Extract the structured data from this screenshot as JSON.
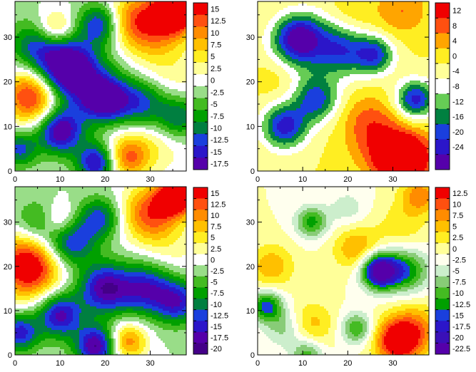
{
  "chart_data": [
    {
      "type": "heatmap",
      "title": "",
      "xlabel": "",
      "ylabel": "",
      "xlim": [
        0,
        38
      ],
      "ylim": [
        0,
        38
      ],
      "x_ticks": [
        "0",
        "10",
        "20",
        "30"
      ],
      "y_ticks": [
        "0",
        "10",
        "20",
        "30"
      ],
      "x_tick_values": [
        0,
        10,
        20,
        30
      ],
      "y_tick_values": [
        0,
        10,
        20,
        30
      ],
      "grid": false,
      "levels": [
        "15",
        "12.5",
        "10",
        "7.5",
        "5",
        "2.5",
        "0",
        "-2.5",
        "-5",
        "-7.5",
        "-10",
        "-12.5",
        "-15",
        "-17.5"
      ],
      "colors": [
        "#f00000",
        "#ff5010",
        "#ff8c00",
        "#ffc000",
        "#ffee22",
        "#ffff99",
        "#ffffff",
        "#99dd88",
        "#44bb22",
        "#00a000",
        "#007f40",
        "#1a3fdd",
        "#2b16c9",
        "#5500aa"
      ],
      "bumps": [
        {
          "x": 36,
          "y": 36,
          "a": 20,
          "s": 3.5
        },
        {
          "x": 30,
          "y": 33,
          "a": 13,
          "s": 5
        },
        {
          "x": 24,
          "y": 34,
          "a": 6,
          "s": 4
        },
        {
          "x": 4,
          "y": 17,
          "a": 18,
          "s": 4.5
        },
        {
          "x": 9,
          "y": 32,
          "a": 9,
          "s": 2.8
        },
        {
          "x": 25,
          "y": 3,
          "a": 11,
          "s": 3.2
        },
        {
          "x": 30,
          "y": 8,
          "a": 6,
          "s": 6
        },
        {
          "x": 34,
          "y": 22,
          "a": 4,
          "s": 6
        },
        {
          "x": 11,
          "y": 23,
          "a": -19,
          "s": 4.5
        },
        {
          "x": 4,
          "y": 28,
          "a": -9,
          "s": 4
        },
        {
          "x": 10,
          "y": 9,
          "a": -18,
          "s": 3.5
        },
        {
          "x": 20,
          "y": 16,
          "a": -17,
          "s": 3.5
        },
        {
          "x": 28,
          "y": 15,
          "a": -14,
          "s": 4
        },
        {
          "x": 36,
          "y": 12,
          "a": -12,
          "s": 3.5
        },
        {
          "x": 19,
          "y": 33,
          "a": -14,
          "s": 3.2
        },
        {
          "x": 18,
          "y": 2,
          "a": -16,
          "s": 3
        },
        {
          "x": 1,
          "y": 5,
          "a": -11,
          "s": 2.8
        },
        {
          "x": 15,
          "y": 20,
          "a": -8,
          "s": 6
        }
      ]
    },
    {
      "type": "heatmap",
      "title": "",
      "xlabel": "",
      "ylabel": "",
      "xlim": [
        0,
        38
      ],
      "ylim": [
        0,
        38
      ],
      "x_ticks": [
        "0",
        "10",
        "20",
        "30"
      ],
      "y_ticks": [
        "0",
        "10",
        "20",
        "30"
      ],
      "x_tick_values": [
        0,
        10,
        20,
        30
      ],
      "y_tick_values": [
        0,
        10,
        20,
        30
      ],
      "grid": false,
      "levels": [
        "12",
        "8",
        "4",
        "0",
        "-4",
        "-8",
        "-12",
        "-16",
        "-20",
        "-24"
      ],
      "colors": [
        "#f00000",
        "#ff5010",
        "#ffa500",
        "#ffee22",
        "#ffff99",
        "#ffffff",
        "#66cc55",
        "#008040",
        "#1a3fdd",
        "#2b16c9",
        "#5500aa"
      ],
      "bumps": [
        {
          "x": 32,
          "y": 2,
          "a": 30,
          "s": 3.2
        },
        {
          "x": 28,
          "y": 6,
          "a": 12,
          "s": 5
        },
        {
          "x": 24,
          "y": 12,
          "a": 6,
          "s": 4
        },
        {
          "x": 36,
          "y": 4,
          "a": 6,
          "s": 4
        },
        {
          "x": 32,
          "y": 36,
          "a": 8,
          "s": 4
        },
        {
          "x": 20,
          "y": 34,
          "a": 6,
          "s": 4
        },
        {
          "x": 5,
          "y": 22,
          "a": 6,
          "s": 4
        },
        {
          "x": 6,
          "y": 10,
          "a": -22,
          "s": 3.5
        },
        {
          "x": 13,
          "y": 16,
          "a": -18,
          "s": 3.5
        },
        {
          "x": 9,
          "y": 30,
          "a": -20,
          "s": 3.5
        },
        {
          "x": 19,
          "y": 27,
          "a": -14,
          "s": 4
        },
        {
          "x": 26,
          "y": 26,
          "a": -18,
          "s": 3
        },
        {
          "x": 35,
          "y": 16,
          "a": -22,
          "s": 3
        },
        {
          "x": 8,
          "y": 26,
          "a": -10,
          "s": 5
        },
        {
          "x": 16,
          "y": 30,
          "a": -8,
          "s": 5
        }
      ]
    },
    {
      "type": "heatmap",
      "title": "",
      "xlabel": "",
      "ylabel": "",
      "xlim": [
        0,
        38
      ],
      "ylim": [
        0,
        38
      ],
      "x_ticks": [
        "0",
        "10",
        "20",
        "30"
      ],
      "y_ticks": [
        "0",
        "10",
        "20",
        "30"
      ],
      "x_tick_values": [
        0,
        10,
        20,
        30
      ],
      "y_tick_values": [
        0,
        10,
        20,
        30
      ],
      "grid": false,
      "levels": [
        "15",
        "12.5",
        "10",
        "7.5",
        "5",
        "2.5",
        "0",
        "-2.5",
        "-5",
        "-7.5",
        "-10",
        "-12.5",
        "-15",
        "-17.5",
        "-20"
      ],
      "colors": [
        "#f00000",
        "#ff5010",
        "#ff8c00",
        "#ffc000",
        "#ffee22",
        "#ffff99",
        "#ffffff",
        "#99dd88",
        "#44bb22",
        "#00a000",
        "#007f40",
        "#1a3fdd",
        "#2b16c9",
        "#5500aa",
        "#440088"
      ],
      "bumps": [
        {
          "x": 36,
          "y": 36,
          "a": 22,
          "s": 3
        },
        {
          "x": 30,
          "y": 32,
          "a": 14,
          "s": 4.5
        },
        {
          "x": 3,
          "y": 20,
          "a": 20,
          "s": 5
        },
        {
          "x": 10,
          "y": 30,
          "a": 10,
          "s": 3
        },
        {
          "x": 25,
          "y": 3,
          "a": 12,
          "s": 3
        },
        {
          "x": 35,
          "y": 24,
          "a": 3,
          "s": 5
        },
        {
          "x": 12,
          "y": 26,
          "a": -15,
          "s": 4
        },
        {
          "x": 10,
          "y": 9,
          "a": -16,
          "s": 3.5
        },
        {
          "x": 20,
          "y": 15,
          "a": -17,
          "s": 4
        },
        {
          "x": 29,
          "y": 15,
          "a": -14,
          "s": 4
        },
        {
          "x": 36,
          "y": 12,
          "a": -14,
          "s": 3.5
        },
        {
          "x": 19,
          "y": 31,
          "a": -11,
          "s": 3.2
        },
        {
          "x": 18,
          "y": 2,
          "a": -18,
          "s": 3.2
        },
        {
          "x": 1,
          "y": 5,
          "a": -14,
          "s": 3
        },
        {
          "x": 5,
          "y": 30,
          "a": -7,
          "s": 3.5
        }
      ]
    },
    {
      "type": "heatmap",
      "title": "",
      "xlabel": "",
      "ylabel": "",
      "xlim": [
        0,
        38
      ],
      "ylim": [
        0,
        38
      ],
      "x_ticks": [
        "0",
        "10",
        "20",
        "30"
      ],
      "y_ticks": [
        "0",
        "10",
        "20",
        "30"
      ],
      "x_tick_values": [
        0,
        10,
        20,
        30
      ],
      "y_tick_values": [
        0,
        10,
        20,
        30
      ],
      "grid": false,
      "levels": [
        "12.5",
        "10",
        "7.5",
        "5",
        "2.5",
        "0",
        "-2.5",
        "-5",
        "-7.5",
        "-10",
        "-12.5",
        "-15",
        "-17.5",
        "-20",
        "-22.5"
      ],
      "colors": [
        "#f00000",
        "#ff5010",
        "#ff8c00",
        "#ffc000",
        "#ffee22",
        "#ffff99",
        "#ffffee",
        "#cceecc",
        "#88cc77",
        "#44bb22",
        "#00a000",
        "#1a3fdd",
        "#2b16c9",
        "#3a10b8",
        "#5500aa"
      ],
      "bumps": [
        {
          "x": 31,
          "y": 3,
          "a": 16,
          "s": 3.5
        },
        {
          "x": 35,
          "y": 6,
          "a": 8,
          "s": 4
        },
        {
          "x": 36,
          "y": 36,
          "a": 9,
          "s": 3
        },
        {
          "x": 3,
          "y": 20,
          "a": 7,
          "s": 3.5
        },
        {
          "x": 22,
          "y": 24,
          "a": 8,
          "s": 3.5
        },
        {
          "x": 12,
          "y": 7,
          "a": 6,
          "s": 3.5
        },
        {
          "x": 32,
          "y": 29,
          "a": 4,
          "s": 4
        },
        {
          "x": 27,
          "y": 19,
          "a": -24,
          "s": 2.8
        },
        {
          "x": 33,
          "y": 19,
          "a": -12,
          "s": 3.5
        },
        {
          "x": 2,
          "y": 11,
          "a": -14,
          "s": 2.5
        },
        {
          "x": 12,
          "y": 30,
          "a": -11,
          "s": 2.5
        },
        {
          "x": 22,
          "y": 6,
          "a": -10,
          "s": 2.5
        },
        {
          "x": 11,
          "y": 0,
          "a": -9,
          "s": 2.5
        },
        {
          "x": 6,
          "y": 6,
          "a": -6,
          "s": 3
        },
        {
          "x": 20,
          "y": 33,
          "a": -4,
          "s": 3
        }
      ]
    }
  ]
}
